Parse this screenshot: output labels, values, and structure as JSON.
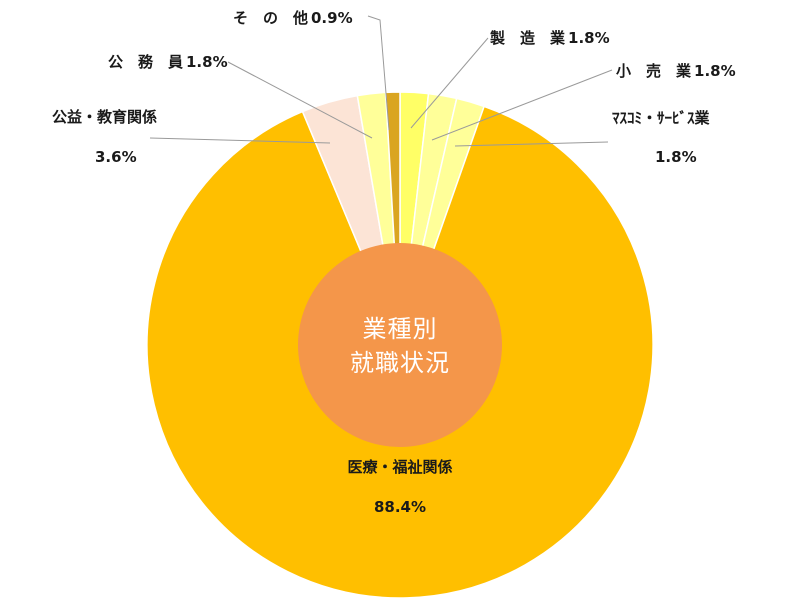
{
  "chart_data": {
    "type": "pie",
    "style": "donut",
    "title": "業種別就職状況",
    "center_label_lines": [
      "業種別",
      "就職状況"
    ],
    "categories": [
      "医療・福祉関係",
      "公益・教育関係",
      "公務員",
      "その他",
      "製造業",
      "小売業",
      "マスコミ・サービス業"
    ],
    "values": [
      88.4,
      3.6,
      1.8,
      0.9,
      1.8,
      1.8,
      1.8
    ],
    "value_labels": [
      "88.4%",
      "3.6%",
      "1.8%",
      "0.9%",
      "1.8%",
      "1.8%",
      "1.8%"
    ],
    "display_labels": [
      "医療・福祉関係",
      "公益・教育関係",
      "公　務　員",
      "そ　の　他",
      "製　造　業",
      "小　売　業",
      "ﾏｽｺﾐ・ｻｰﾋﾞｽ業"
    ],
    "colors": [
      "#FFBF00",
      "#FCE4D6",
      "#FFFF99",
      "#DAA520",
      "#FFFF66",
      "#FFFF99",
      "#FFFF99"
    ],
    "center_color": "#F4964A",
    "start_direction": "top",
    "direction": "counterclockwise-from-top-for-first-slices",
    "legend": "none"
  }
}
